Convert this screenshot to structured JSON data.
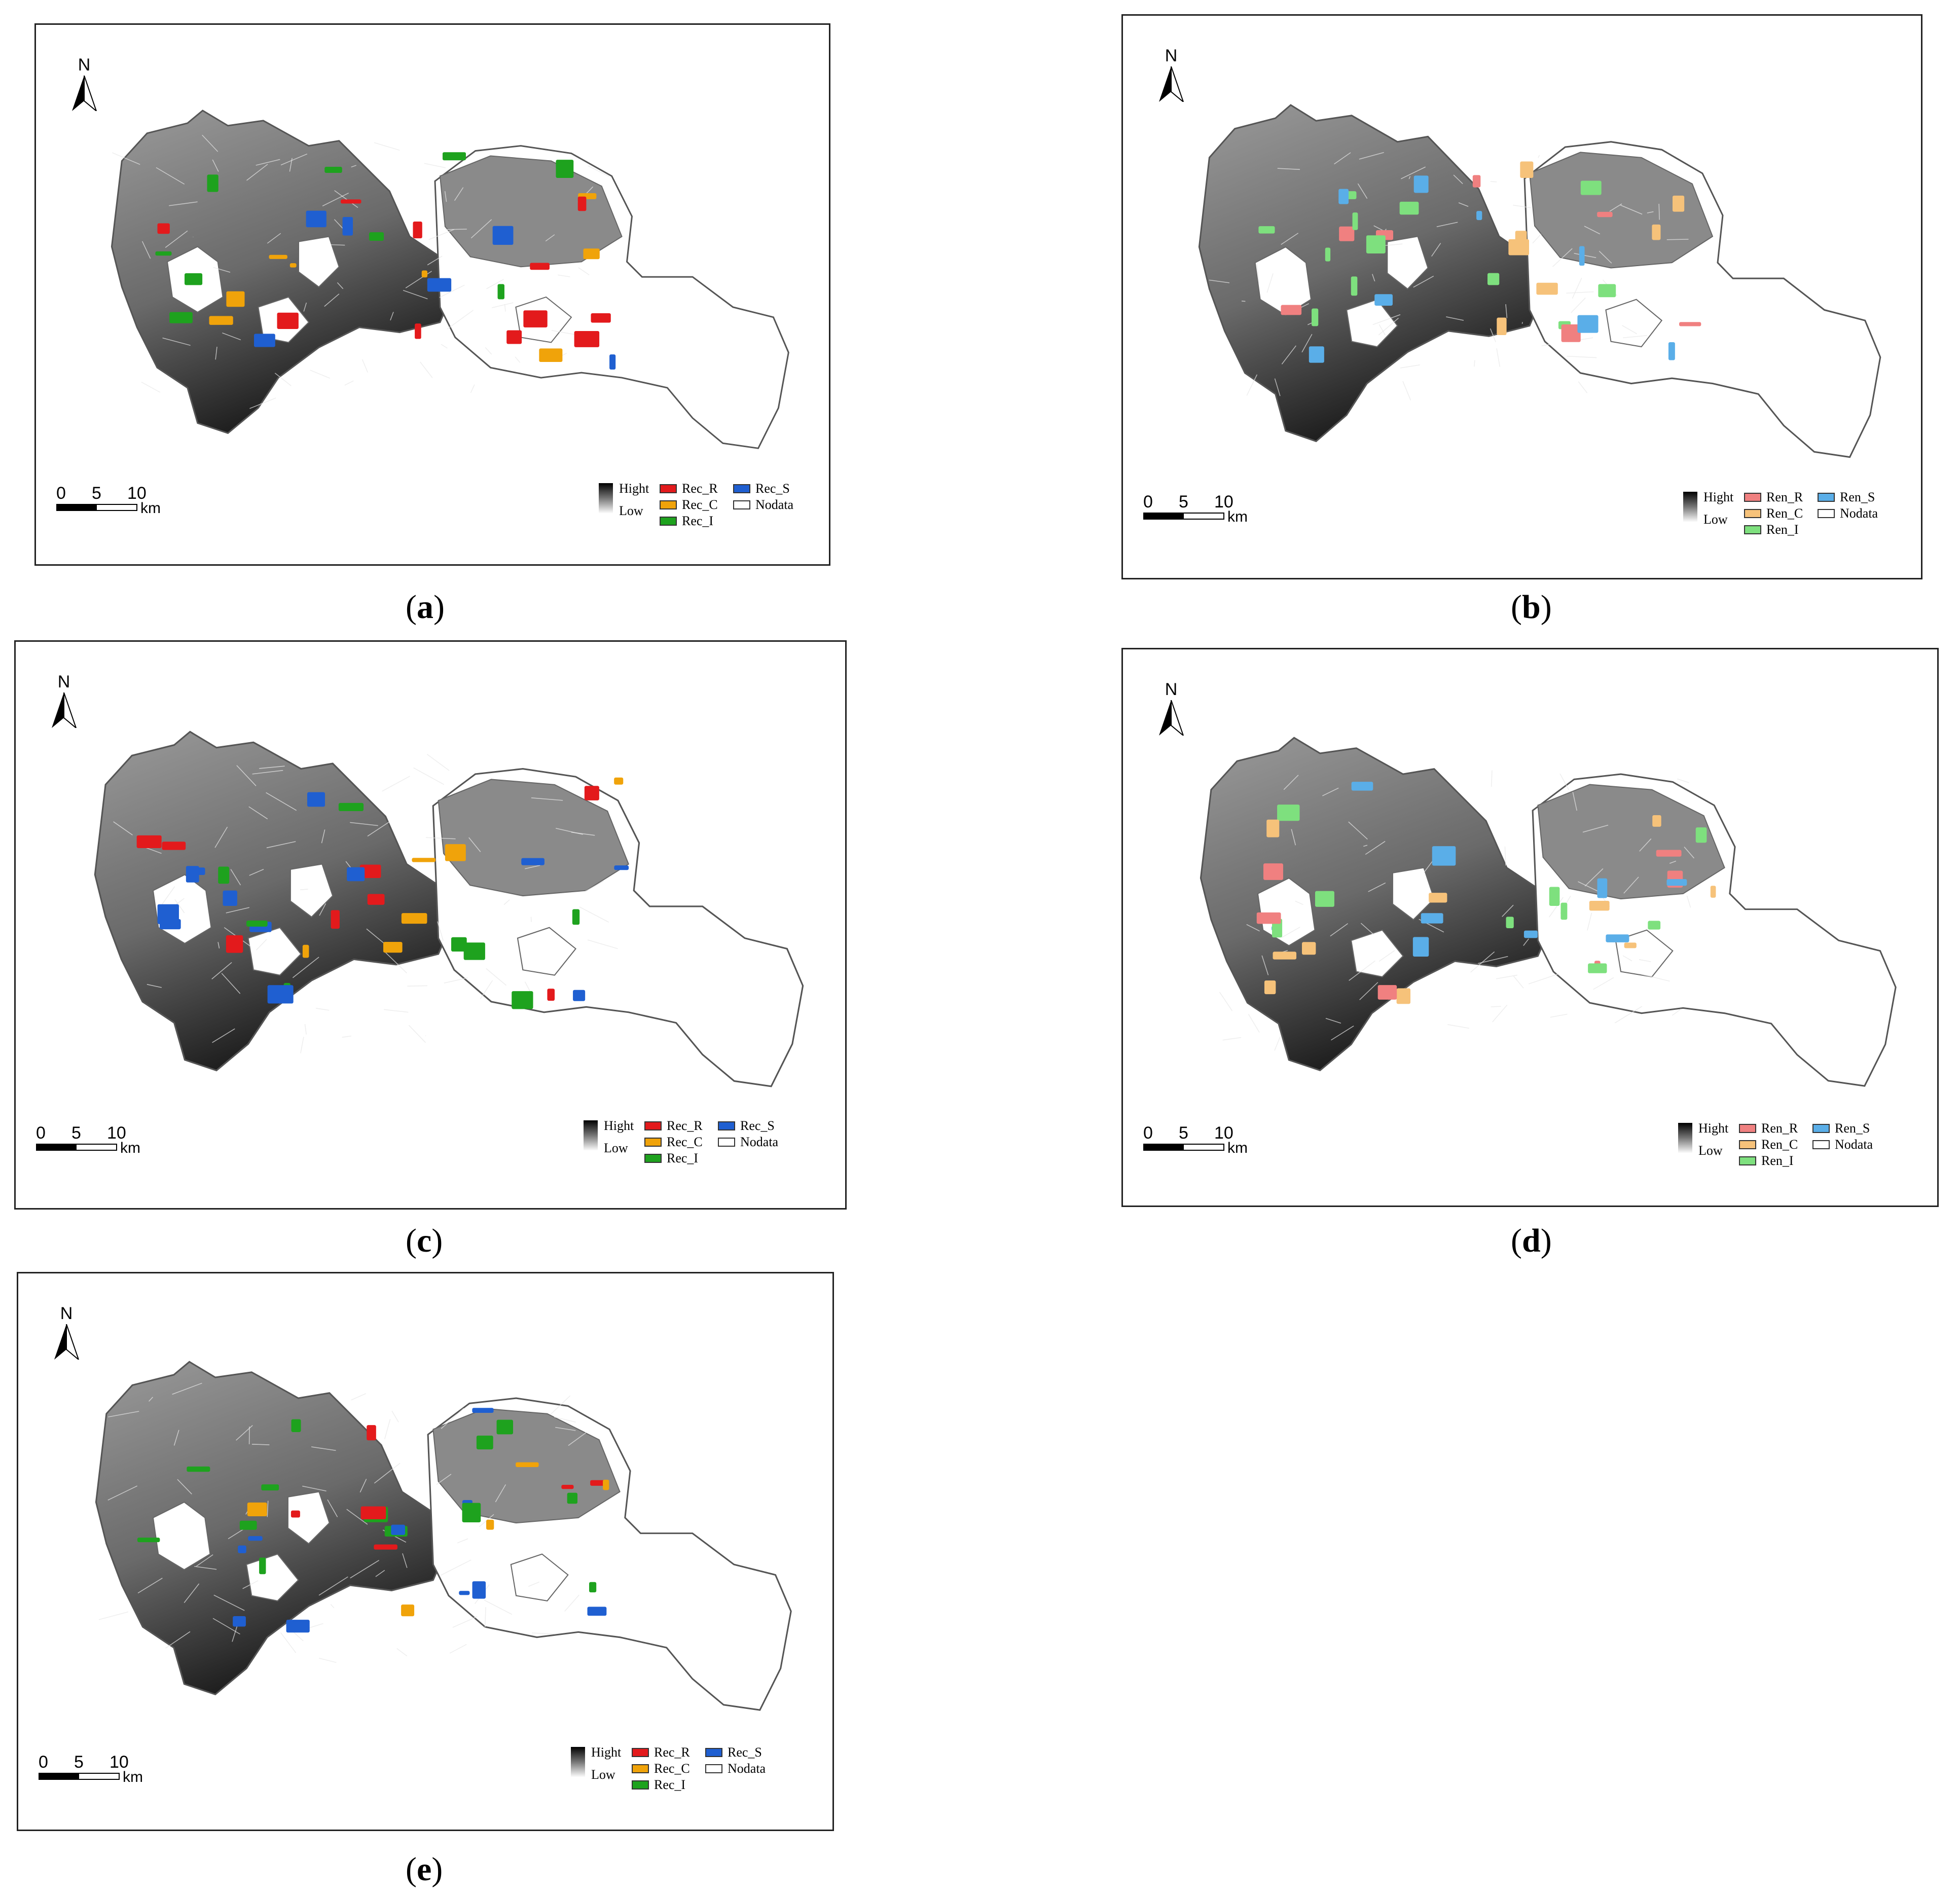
{
  "map_panels": [
    {
      "caption_letter": "a",
      "north_label": "N",
      "scale_ticks": [
        "0",
        "5",
        "10"
      ],
      "scale_unit": "km",
      "legend": {
        "high": "Hight",
        "low": "Low",
        "items": [
          {
            "label": "Rec_R",
            "color": "#e31a1c"
          },
          {
            "label": "Rec_C",
            "color": "#f0a30a"
          },
          {
            "label": "Rec_I",
            "color": "#1ea21e"
          },
          {
            "label": "Rec_S",
            "color": "#1f5fd1"
          },
          {
            "label": "Nodata",
            "color": "#ffffff"
          }
        ]
      }
    },
    {
      "caption_letter": "b",
      "north_label": "N",
      "scale_ticks": [
        "0",
        "5",
        "10"
      ],
      "scale_unit": "km",
      "legend": {
        "high": "Hight",
        "low": "Low",
        "items": [
          {
            "label": "Ren_R",
            "color": "#f08080"
          },
          {
            "label": "Ren_C",
            "color": "#f6c27a"
          },
          {
            "label": "Ren_I",
            "color": "#7ee07e"
          },
          {
            "label": "Ren_S",
            "color": "#5aaee8"
          },
          {
            "label": "Nodata",
            "color": "#ffffff"
          }
        ]
      }
    },
    {
      "caption_letter": "c",
      "north_label": "N",
      "scale_ticks": [
        "0",
        "5",
        "10"
      ],
      "scale_unit": "km",
      "legend": {
        "high": "Hight",
        "low": "Low",
        "items": [
          {
            "label": "Rec_R",
            "color": "#e31a1c"
          },
          {
            "label": "Rec_C",
            "color": "#f0a30a"
          },
          {
            "label": "Rec_I",
            "color": "#1ea21e"
          },
          {
            "label": "Rec_S",
            "color": "#1f5fd1"
          },
          {
            "label": "Nodata",
            "color": "#ffffff"
          }
        ]
      }
    },
    {
      "caption_letter": "d",
      "north_label": "N",
      "scale_ticks": [
        "0",
        "5",
        "10"
      ],
      "scale_unit": "km",
      "legend": {
        "high": "Hight",
        "low": "Low",
        "items": [
          {
            "label": "Ren_R",
            "color": "#f08080"
          },
          {
            "label": "Ren_C",
            "color": "#f6c27a"
          },
          {
            "label": "Ren_I",
            "color": "#7ee07e"
          },
          {
            "label": "Ren_S",
            "color": "#5aaee8"
          },
          {
            "label": "Nodata",
            "color": "#ffffff"
          }
        ]
      }
    },
    {
      "caption_letter": "e",
      "north_label": "N",
      "scale_ticks": [
        "0",
        "5",
        "10"
      ],
      "scale_unit": "km",
      "legend": {
        "high": "Hight",
        "low": "Low",
        "items": [
          {
            "label": "Rec_R",
            "color": "#e31a1c"
          },
          {
            "label": "Rec_C",
            "color": "#f0a30a"
          },
          {
            "label": "Rec_I",
            "color": "#1ea21e"
          },
          {
            "label": "Rec_S",
            "color": "#1f5fd1"
          },
          {
            "label": "Nodata",
            "color": "#ffffff"
          }
        ]
      }
    }
  ]
}
